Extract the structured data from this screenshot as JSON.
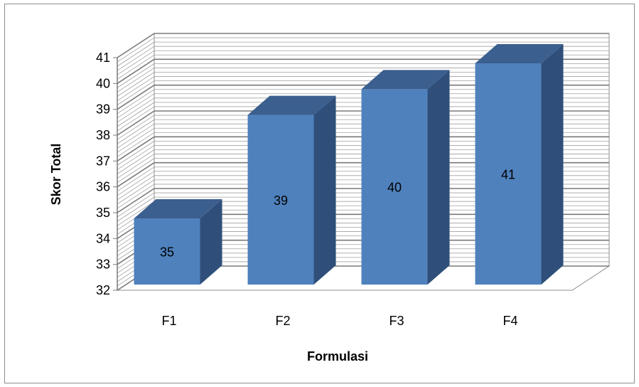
{
  "chart_data": {
    "type": "bar",
    "style": "3d-column",
    "title": "",
    "categories": [
      "F1",
      "F2",
      "F3",
      "F4"
    ],
    "values": [
      35,
      39,
      40,
      41
    ],
    "data_labels": [
      "35",
      "39",
      "40",
      "41"
    ],
    "xlabel": "Formulasi",
    "ylabel": "Skor Total",
    "ylim": [
      32,
      41
    ],
    "yticks": [
      "32",
      "33",
      "34",
      "35",
      "36",
      "37",
      "38",
      "39",
      "40",
      "41"
    ],
    "grid": true,
    "legend": "none",
    "colors": {
      "bar_front": "#4f81bd",
      "bar_side": "#2f4f7a",
      "bar_top": "#3b5f8e",
      "grid": "#8c8c8c",
      "frame": "#8c8c8c"
    }
  }
}
